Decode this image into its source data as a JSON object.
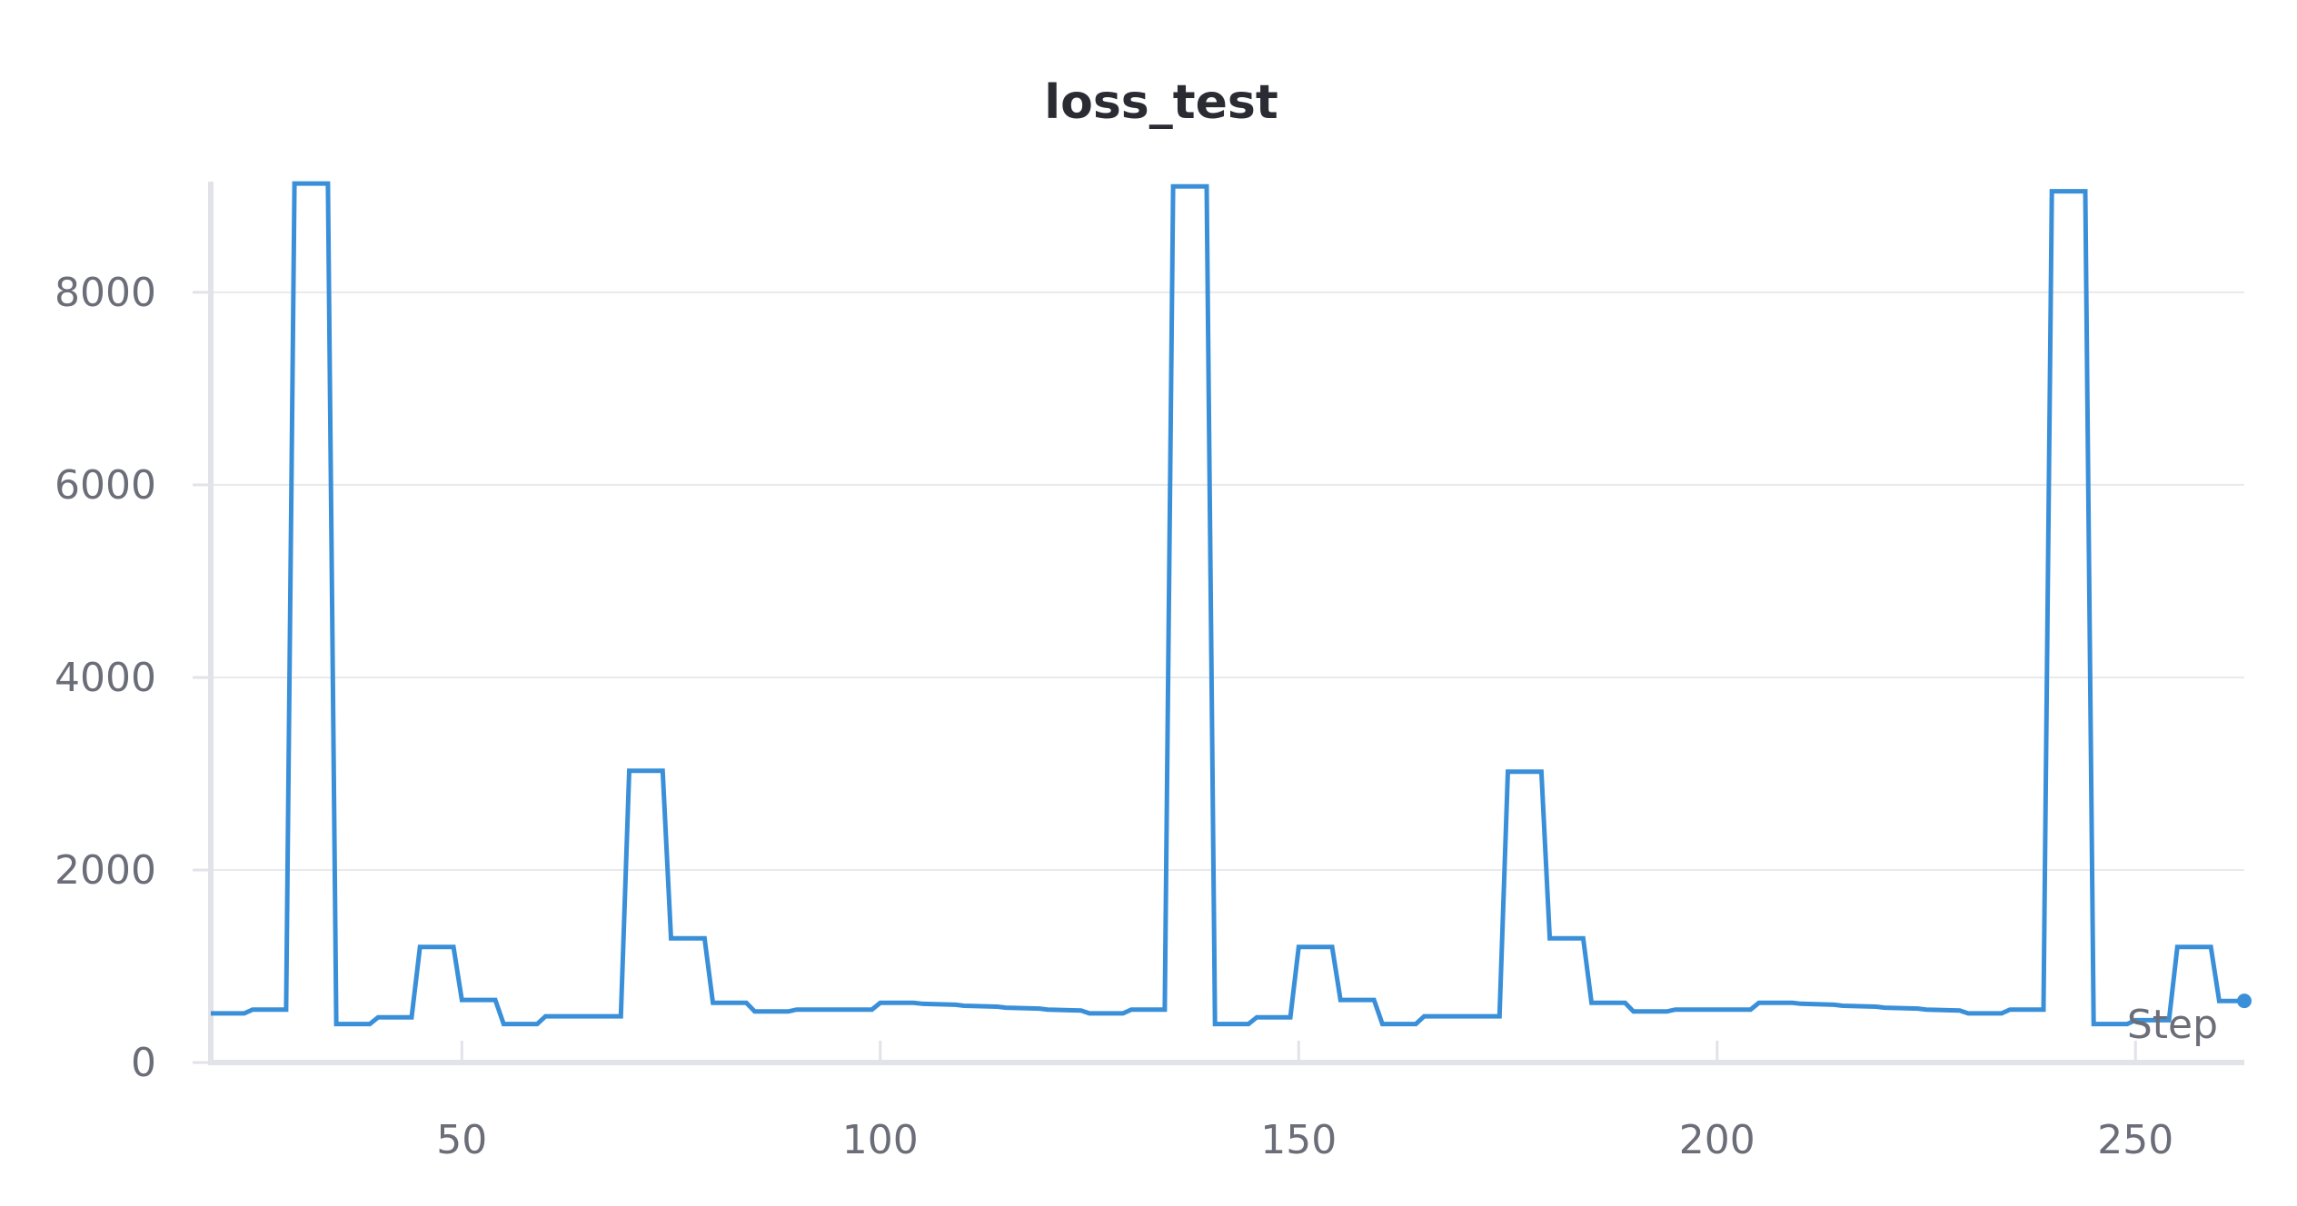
{
  "chart_data": {
    "type": "line",
    "title": "loss_test",
    "xlabel": "Step",
    "ylabel": "",
    "x_ticks": [
      50,
      100,
      150,
      200,
      250
    ],
    "y_ticks": [
      0,
      2000,
      4000,
      6000,
      8000
    ],
    "xlim": [
      20,
      263
    ],
    "ylim": [
      0,
      9150
    ],
    "grid": true,
    "legend": "none",
    "colors": {
      "line": "#3a8fd9",
      "grid": "#e9eaee",
      "axis": "#e2e3e8",
      "title": "#2b2c33",
      "tick_text": "#6b6e78"
    },
    "series": [
      {
        "x": [
          20,
          24,
          25,
          29,
          30,
          34,
          35,
          39,
          40,
          44,
          45,
          49,
          50,
          54,
          55,
          59,
          60,
          64,
          65,
          69,
          70,
          74,
          75,
          79,
          80,
          84,
          85,
          89,
          90,
          94,
          95,
          99,
          100,
          104,
          105,
          109,
          110,
          114,
          115,
          119,
          120,
          124,
          125,
          129,
          130,
          134,
          135,
          139,
          140,
          144,
          145,
          149,
          150,
          154,
          155,
          159,
          160,
          164,
          165,
          169,
          170,
          174,
          175,
          179,
          180,
          184,
          185,
          189,
          190,
          194,
          195,
          199,
          200,
          204,
          205,
          209,
          210,
          214,
          215,
          219,
          220,
          224,
          225,
          229,
          230,
          234,
          235,
          239,
          240,
          244,
          245,
          249,
          250,
          254,
          255,
          259,
          260,
          263
        ],
        "y": [
          510,
          510,
          550,
          550,
          9130,
          9130,
          400,
          400,
          470,
          470,
          1200,
          1200,
          650,
          650,
          400,
          400,
          480,
          480,
          480,
          480,
          3030,
          3030,
          1290,
          1290,
          620,
          620,
          530,
          530,
          550,
          550,
          550,
          550,
          620,
          620,
          610,
          600,
          590,
          580,
          570,
          560,
          550,
          540,
          510,
          510,
          550,
          550,
          9100,
          9100,
          400,
          400,
          470,
          470,
          1200,
          1200,
          650,
          650,
          400,
          400,
          480,
          480,
          480,
          480,
          3020,
          3020,
          1290,
          1290,
          620,
          620,
          530,
          530,
          550,
          550,
          550,
          550,
          620,
          620,
          610,
          600,
          590,
          580,
          570,
          560,
          550,
          540,
          510,
          510,
          550,
          550,
          9050,
          9050,
          400,
          400,
          440,
          440,
          1200,
          1200,
          640,
          640
        ]
      }
    ]
  }
}
